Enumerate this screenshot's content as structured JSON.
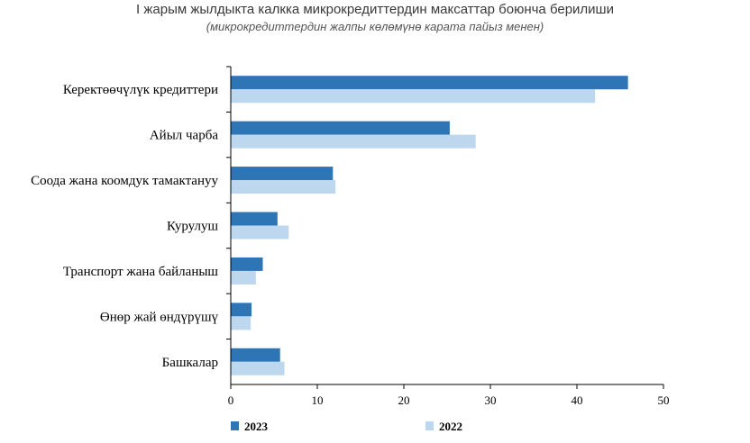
{
  "chart_data": {
    "type": "bar",
    "orientation": "horizontal",
    "title": "I жарым жылдыкта калкка микрокредиттердин максаттар боюнча берилиши",
    "subtitle": "(микрокредиттердин жалпы көлөмүнө карата пайыз менен)",
    "categories": [
      "Керектөөчүлүк кредиттери",
      "Айыл чарба",
      "Соода жана коомдук тамактануу",
      "Курулуш",
      "Транспорт жана байланыш",
      "Өнөр жай өндүрүшү",
      "Башкалар"
    ],
    "series": [
      {
        "name": "2023",
        "color": "#2e75b6",
        "values": [
          45.9,
          25.3,
          11.8,
          5.4,
          3.7,
          2.4,
          5.7
        ]
      },
      {
        "name": "2022",
        "color": "#bdd7ee",
        "values": [
          42.1,
          28.3,
          12.1,
          6.7,
          2.9,
          2.3,
          6.2
        ]
      }
    ],
    "xlim": [
      0,
      50
    ],
    "xticks": [
      0,
      10,
      20,
      30,
      40,
      50
    ],
    "grid": false,
    "legend_position": "bottom-left"
  }
}
